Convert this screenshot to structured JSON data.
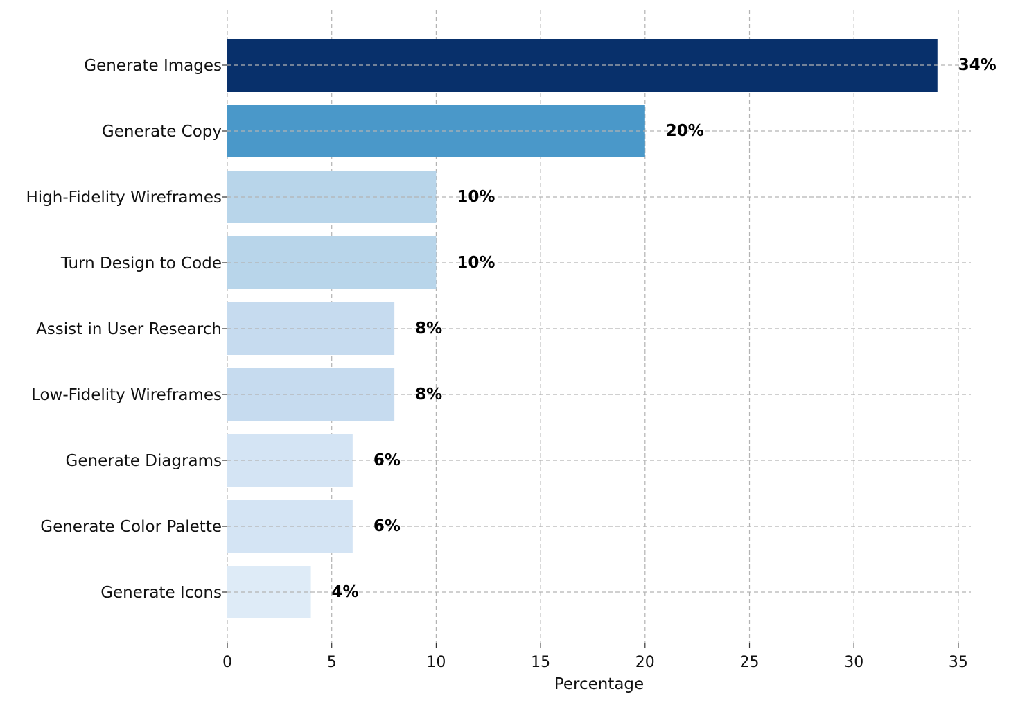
{
  "chart_data": {
    "type": "bar",
    "orientation": "horizontal",
    "title": "",
    "xlabel": "Percentage",
    "ylabel": "",
    "xlim": [
      0,
      35.6
    ],
    "xticks": [
      "0",
      "5",
      "10",
      "15",
      "20",
      "25",
      "30",
      "35"
    ],
    "grid": true,
    "categories": [
      "Generate Images",
      "Generate Copy",
      "High-Fidelity Wireframes",
      "Turn Design to Code",
      "Assist in User Research",
      "Low-Fidelity Wireframes",
      "Generate Diagrams",
      "Generate Color Palette",
      "Generate Icons"
    ],
    "values": [
      34,
      20,
      10,
      10,
      8,
      8,
      6,
      6,
      4
    ],
    "value_labels": [
      "34%",
      "20%",
      "10%",
      "10%",
      "8%",
      "8%",
      "6%",
      "6%",
      "4%"
    ],
    "colors": [
      "#08306b",
      "#4a98c9",
      "#b8d5ea",
      "#b8d5ea",
      "#c6dbef",
      "#c6dbef",
      "#d4e4f4",
      "#d4e4f4",
      "#deebf7"
    ]
  }
}
